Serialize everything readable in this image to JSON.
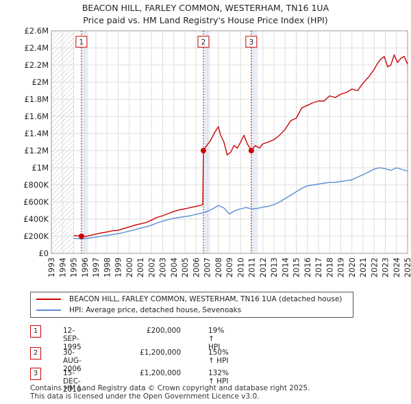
{
  "header": {
    "title_line1": "BEACON HILL, FARLEY COMMON, WESTERHAM, TN16 1UA",
    "title_line2": "Price paid vs. HM Land Registry's House Price Index (HPI)"
  },
  "colors": {
    "property": "#cc0000",
    "hpi": "#5b8ed6",
    "marker": "#cc0000",
    "hatch": "#bbbbbb",
    "grid": "#dddddd",
    "shade": "#e8eef8"
  },
  "chart_data": {
    "type": "line",
    "title": "Price paid vs. HM Land Registry's House Price Index (HPI)",
    "xlabel": "",
    "ylabel": "",
    "xlim": [
      1993,
      2025
    ],
    "ylim": [
      0,
      2600000
    ],
    "y_ticks": [
      0,
      200000,
      400000,
      600000,
      800000,
      1000000,
      1200000,
      1400000,
      1600000,
      1800000,
      2000000,
      2200000,
      2400000,
      2600000
    ],
    "y_tick_labels": [
      "£0",
      "£200K",
      "£400K",
      "£600K",
      "£800K",
      "£1M",
      "£1.2M",
      "£1.4M",
      "£1.6M",
      "£1.8M",
      "£2M",
      "£2.2M",
      "£2.4M",
      "£2.6M"
    ],
    "x_ticks": [
      1993,
      1994,
      1995,
      1996,
      1997,
      1998,
      1999,
      2000,
      2001,
      2002,
      2003,
      2004,
      2005,
      2006,
      2007,
      2008,
      2009,
      2010,
      2011,
      2012,
      2013,
      2014,
      2015,
      2016,
      2017,
      2018,
      2019,
      2020,
      2021,
      2022,
      2023,
      2024,
      2025
    ],
    "x_tick_labels": [
      "1993",
      "1994",
      "1995",
      "1996",
      "1997",
      "1998",
      "1999",
      "2000",
      "2001",
      "2002",
      "2003",
      "2004",
      "2005",
      "2006",
      "2007",
      "2008",
      "2009",
      "2010",
      "2011",
      "2012",
      "2013",
      "2014",
      "2015",
      "2016",
      "2017",
      "2018",
      "2019",
      "2020",
      "2021",
      "2022",
      "2023",
      "2024",
      "2025"
    ],
    "grid": true,
    "series": [
      {
        "name": "BEACON HILL, FARLEY COMMON, WESTERHAM, TN16 1UA (detached house)",
        "x": [
          1995.0,
          1995.7,
          1996.0,
          1996.5,
          1997.0,
          1997.5,
          1998.0,
          1998.5,
          1999.0,
          1999.5,
          2000.0,
          2000.5,
          2001.0,
          2001.5,
          2002.0,
          2002.5,
          2003.0,
          2003.5,
          2004.0,
          2004.5,
          2005.0,
          2005.5,
          2006.0,
          2006.4,
          2006.6,
          2006.66,
          2006.9,
          2007.3,
          2007.7,
          2008.0,
          2008.2,
          2008.5,
          2008.8,
          2009.1,
          2009.4,
          2009.7,
          2010.0,
          2010.3,
          2010.6,
          2010.96,
          2011.3,
          2011.7,
          2012.0,
          2012.5,
          2013.0,
          2013.5,
          2014.0,
          2014.5,
          2015.0,
          2015.5,
          2016.0,
          2016.5,
          2017.0,
          2017.5,
          2018.0,
          2018.5,
          2019.0,
          2019.5,
          2020.0,
          2020.5,
          2021.0,
          2021.5,
          2022.0,
          2022.3,
          2022.6,
          2022.9,
          2023.2,
          2023.5,
          2023.8,
          2024.1,
          2024.4,
          2024.7,
          2025.0
        ],
        "values": [
          210000,
          200000,
          195000,
          210000,
          225000,
          240000,
          250000,
          265000,
          270000,
          290000,
          310000,
          330000,
          345000,
          360000,
          390000,
          420000,
          440000,
          465000,
          490000,
          510000,
          520000,
          535000,
          550000,
          560000,
          570000,
          1200000,
          1250000,
          1320000,
          1420000,
          1480000,
          1380000,
          1300000,
          1150000,
          1180000,
          1260000,
          1230000,
          1300000,
          1380000,
          1280000,
          1200000,
          1260000,
          1230000,
          1280000,
          1300000,
          1330000,
          1380000,
          1450000,
          1550000,
          1580000,
          1700000,
          1730000,
          1760000,
          1780000,
          1780000,
          1840000,
          1820000,
          1860000,
          1880000,
          1920000,
          1900000,
          1990000,
          2060000,
          2150000,
          2220000,
          2270000,
          2300000,
          2180000,
          2200000,
          2320000,
          2230000,
          2280000,
          2300000,
          2210000
        ]
      },
      {
        "name": "HPI: Average price, detached house, Sevenoaks",
        "x": [
          1995.0,
          1995.7,
          1996.0,
          1996.5,
          1997.0,
          1997.5,
          1998.0,
          1998.5,
          1999.0,
          1999.5,
          2000.0,
          2000.5,
          2001.0,
          2001.5,
          2002.0,
          2002.5,
          2003.0,
          2003.5,
          2004.0,
          2004.5,
          2005.0,
          2005.5,
          2006.0,
          2006.5,
          2007.0,
          2007.5,
          2008.0,
          2008.5,
          2009.0,
          2009.5,
          2010.0,
          2010.5,
          2011.0,
          2011.5,
          2012.0,
          2012.5,
          2013.0,
          2013.5,
          2014.0,
          2014.5,
          2015.0,
          2015.5,
          2016.0,
          2016.5,
          2017.0,
          2017.5,
          2018.0,
          2018.5,
          2019.0,
          2019.5,
          2020.0,
          2020.5,
          2021.0,
          2021.5,
          2022.0,
          2022.5,
          2023.0,
          2023.5,
          2024.0,
          2024.5,
          2025.0
        ],
        "values": [
          175000,
          170000,
          172000,
          180000,
          190000,
          200000,
          210000,
          220000,
          230000,
          245000,
          260000,
          275000,
          295000,
          310000,
          330000,
          355000,
          375000,
          395000,
          410000,
          420000,
          430000,
          440000,
          455000,
          470000,
          490000,
          520000,
          560000,
          530000,
          460000,
          500000,
          520000,
          535000,
          520000,
          525000,
          540000,
          550000,
          570000,
          600000,
          640000,
          680000,
          720000,
          760000,
          790000,
          800000,
          810000,
          820000,
          830000,
          830000,
          840000,
          850000,
          860000,
          890000,
          920000,
          950000,
          985000,
          1000000,
          990000,
          970000,
          1000000,
          980000,
          960000
        ]
      }
    ],
    "sales": [
      {
        "label": "1",
        "year": 1995.7,
        "value": 200000
      },
      {
        "label": "2",
        "year": 2006.66,
        "value": 1200000
      },
      {
        "label": "3",
        "year": 2010.96,
        "value": 1200000
      }
    ],
    "hatched_before": 1995.0
  },
  "legend": {
    "property_label": "BEACON HILL, FARLEY COMMON, WESTERHAM, TN16 1UA (detached house)",
    "hpi_label": "HPI: Average price, detached house, Sevenoaks"
  },
  "transactions": [
    {
      "num": "1",
      "date": "12-SEP-1995",
      "price": "£200,000",
      "hpi": "19% ↑ HPI"
    },
    {
      "num": "2",
      "date": "30-AUG-2006",
      "price": "£1,200,000",
      "hpi": "150% ↑ HPI"
    },
    {
      "num": "3",
      "date": "15-DEC-2010",
      "price": "£1,200,000",
      "hpi": "132% ↑ HPI"
    }
  ],
  "footer": {
    "line1": "Contains HM Land Registry data © Crown copyright and database right 2025.",
    "line2": "This data is licensed under the Open Government Licence v3.0."
  }
}
